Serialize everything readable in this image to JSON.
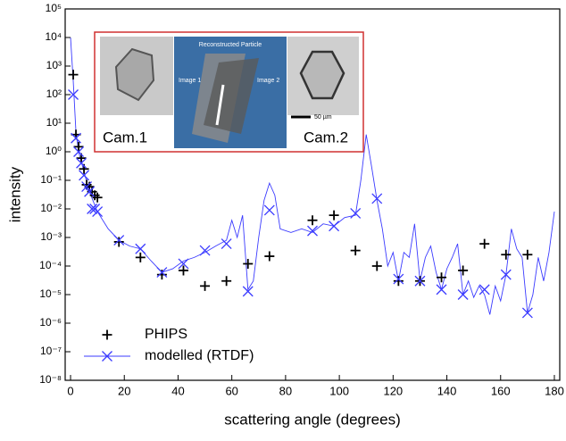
{
  "chart_data": {
    "type": "scatter",
    "xlabel": "scattering angle (degrees)",
    "ylabel": "intensity",
    "xlim": [
      -2,
      182
    ],
    "xticks": [
      0,
      20,
      40,
      60,
      80,
      100,
      120,
      140,
      160,
      180
    ],
    "ylim": [
      1e-08,
      100000
    ],
    "log_y": true,
    "yticks": [
      {
        "value": 1e-08,
        "label": "10⁻⁸"
      },
      {
        "value": 1e-07,
        "label": "10⁻⁷"
      },
      {
        "value": 1e-06,
        "label": "10⁻⁶"
      },
      {
        "value": 1e-05,
        "label": "10⁻⁵"
      },
      {
        "value": 0.0001,
        "label": "10⁻⁴"
      },
      {
        "value": 0.001,
        "label": "10⁻³"
      },
      {
        "value": 0.01,
        "label": "10⁻²"
      },
      {
        "value": 0.1,
        "label": "10⁻¹"
      },
      {
        "value": 1,
        "label": "10⁰"
      },
      {
        "value": 10,
        "label": "10¹"
      },
      {
        "value": 100,
        "label": "10²"
      },
      {
        "value": 1000,
        "label": "10³"
      },
      {
        "value": 10000,
        "label": "10⁴"
      },
      {
        "value": 100000,
        "label": "10⁵"
      }
    ],
    "legend": "lower left",
    "series": [
      {
        "name": "PHIPS",
        "color": "#000000",
        "marker": "+",
        "x": [
          1,
          2,
          3,
          4,
          5,
          6,
          7,
          8,
          9,
          10,
          18,
          26,
          34,
          42,
          50,
          58,
          66,
          74,
          90,
          98,
          106,
          114,
          122,
          130,
          138,
          146,
          154,
          162,
          170
        ],
        "values": [
          500,
          4,
          1.5,
          0.6,
          0.25,
          0.07,
          0.06,
          0.04,
          0.03,
          0.025,
          0.0007,
          0.0002,
          5e-05,
          7e-05,
          2e-05,
          3e-05,
          0.00012,
          0.00022,
          0.004,
          0.006,
          0.00035,
          0.0001,
          3e-05,
          3e-05,
          4e-05,
          7e-05,
          0.0006,
          0.00025,
          0.00025
        ]
      },
      {
        "name": "modelled (RTDF)",
        "color": "#3b3bff",
        "marker": "x",
        "x": [
          1,
          2,
          3,
          4,
          5,
          6,
          7,
          8,
          9,
          10,
          18,
          26,
          34,
          42,
          50,
          58,
          66,
          74,
          90,
          98,
          106,
          114,
          122,
          130,
          138,
          146,
          154,
          162,
          170
        ],
        "values": [
          100,
          3,
          1,
          0.4,
          0.15,
          0.06,
          0.04,
          0.01,
          0.01,
          0.008,
          0.0008,
          0.0004,
          6e-05,
          0.00012,
          0.00035,
          0.0006,
          1.3e-05,
          0.009,
          0.0017,
          0.0025,
          0.007,
          0.023,
          3.5e-05,
          3e-05,
          1.5e-05,
          1e-05,
          1.5e-05,
          5e-05,
          2.3e-06
        ],
        "curve_x": [
          0,
          1,
          2,
          3,
          5,
          7,
          10,
          14,
          18,
          22,
          26,
          30,
          34,
          38,
          42,
          46,
          50,
          54,
          58,
          60,
          62,
          64,
          66,
          68,
          70,
          72,
          74,
          76,
          78,
          82,
          86,
          90,
          94,
          98,
          102,
          106,
          108,
          110,
          112,
          114,
          116,
          118,
          120,
          122,
          124,
          126,
          128,
          130,
          132,
          134,
          136,
          138,
          140,
          142,
          144,
          146,
          148,
          150,
          152,
          154,
          156,
          158,
          160,
          162,
          164,
          166,
          168,
          170,
          172,
          174,
          176,
          178,
          180
        ],
        "curve_values": [
          10000,
          300,
          5,
          1,
          0.2,
          0.04,
          0.008,
          0.002,
          0.0008,
          0.0005,
          0.0004,
          0.00015,
          6e-05,
          8e-05,
          0.00015,
          0.0002,
          0.0003,
          0.0005,
          0.0008,
          0.004,
          0.001,
          0.006,
          1.5e-05,
          3e-05,
          0.001,
          0.02,
          0.08,
          0.03,
          0.002,
          0.0015,
          0.002,
          0.0015,
          0.003,
          0.0025,
          0.005,
          0.006,
          0.1,
          4,
          0.3,
          0.02,
          0.002,
          0.0001,
          0.0003,
          3e-05,
          0.0003,
          0.0002,
          0.003,
          3e-05,
          0.0002,
          0.0005,
          6e-05,
          1.5e-05,
          8e-05,
          0.0002,
          0.0006,
          1e-05,
          3e-05,
          8e-06,
          2e-05,
          1e-05,
          2e-06,
          2e-05,
          6e-06,
          5e-05,
          0.002,
          0.0004,
          0.0002,
          2.3e-06,
          1e-05,
          0.0002,
          3e-05,
          0.0003,
          0.008
        ]
      }
    ],
    "inset": {
      "cam1": "Cam.1",
      "cam2": "Cam.2",
      "reconstructed": "Reconstructed Particle",
      "image1": "Image 1",
      "image2": "Image 2",
      "scale": "50 µm"
    }
  }
}
